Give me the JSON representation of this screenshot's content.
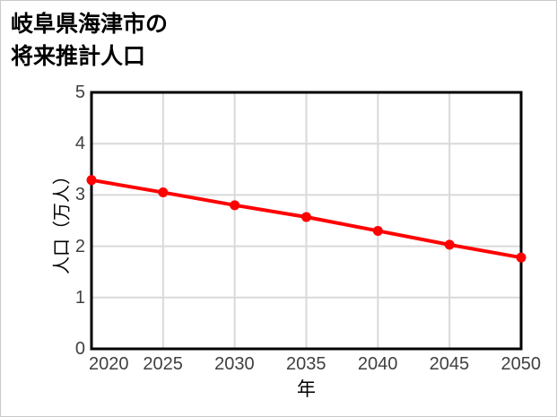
{
  "chart": {
    "title_line1": "岐阜県海津市の",
    "title_line2": "将来推計人口",
    "colors": {
      "line": "#ff0000",
      "marker": "#ff0000",
      "grid": "#d9d9d9",
      "axis_frame": "#000000",
      "tick_text": "#404040",
      "title_text": "#000000",
      "image_border": "#c9c9c9",
      "background": "#ffffff"
    }
  },
  "chart_data": {
    "type": "line",
    "title": "岐阜県海津市の将来推計人口",
    "xlabel": "年",
    "ylabel": "人口（万人）",
    "x": [
      2020,
      2025,
      2030,
      2035,
      2040,
      2045,
      2050
    ],
    "values": [
      3.29,
      3.05,
      2.8,
      2.57,
      2.3,
      2.03,
      1.78
    ],
    "xlim": [
      2020,
      2050
    ],
    "ylim": [
      0,
      5
    ],
    "x_ticks": [
      "2020",
      "2025",
      "2030",
      "2035",
      "2040",
      "2045",
      "2050"
    ],
    "y_ticks": [
      "0",
      "1",
      "2",
      "3",
      "4",
      "5"
    ],
    "grid": true,
    "legend": "none",
    "line_width": 4,
    "marker": "circle",
    "marker_radius": 5.5
  }
}
